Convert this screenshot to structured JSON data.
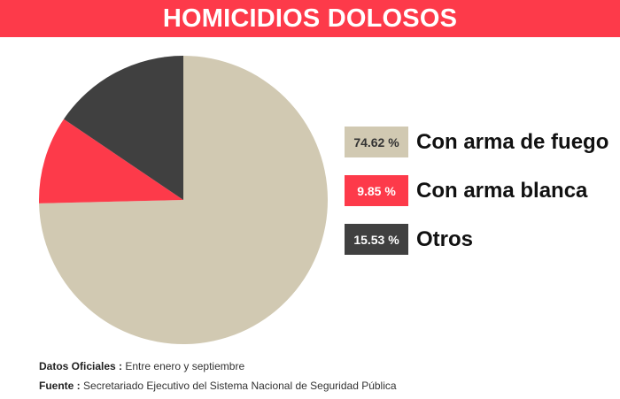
{
  "header": {
    "title": "HOMICIDIOS DOLOSOS"
  },
  "chart_data": {
    "type": "pie",
    "title": "HOMICIDIOS DOLOSOS",
    "categories": [
      "Con arma de fuego",
      "Con arma blanca",
      "Otros"
    ],
    "values": [
      74.62,
      9.85,
      15.53
    ],
    "value_labels": [
      "74.62 %",
      "9.85 %",
      "15.53 %"
    ],
    "colors": [
      "#d1c9b2",
      "#fd3a4a",
      "#404040"
    ],
    "label_colors": [
      "#333333",
      "#ffffff",
      "#ffffff"
    ],
    "legend_position": "right",
    "start": "top",
    "direction": "clockwise"
  },
  "footer": {
    "line1_key": "Datos Oficiales :",
    "line1_value": "Entre enero y septiembre",
    "line2_key": "Fuente :",
    "line2_value": "Secretariado Ejecutivo del Sistema Nacional de Seguridad Pública"
  }
}
